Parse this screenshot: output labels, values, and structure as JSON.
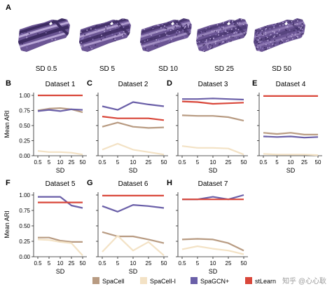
{
  "panel_a": {
    "letter": "A",
    "labels": [
      "SD 0.5",
      "SD 5",
      "SD 10",
      "SD 25",
      "SD 50"
    ]
  },
  "chart_data": [
    {
      "letter": "B",
      "type": "line",
      "title": "Dataset 1",
      "x": [
        "0.5",
        "5",
        "10",
        "25",
        "50"
      ],
      "xlabel": "SD",
      "ylabel": "Mean ARI",
      "ylim": [
        0,
        1.0
      ],
      "yticks": [
        "0.00",
        "0.25",
        "0.50",
        "0.75",
        "1.00"
      ],
      "series": [
        {
          "name": "SpaCell",
          "values": [
            0.75,
            0.78,
            0.79,
            0.77,
            0.72
          ]
        },
        {
          "name": "SpaCell-I",
          "values": [
            0.08,
            0.06,
            0.06,
            0.05,
            0.02
          ]
        },
        {
          "name": "SpaGCN+",
          "values": [
            0.74,
            0.76,
            0.74,
            0.77,
            0.76
          ]
        },
        {
          "name": "stLearn",
          "values": [
            1.0,
            1.0,
            1.0,
            1.0,
            1.0
          ]
        }
      ]
    },
    {
      "letter": "C",
      "type": "line",
      "title": "Dataset 2",
      "x": [
        "0.5",
        "5",
        "10",
        "25",
        "50"
      ],
      "xlabel": "SD",
      "ylabel": "",
      "ylim": [
        0,
        1.0
      ],
      "yticks": [
        "",
        "",
        "",
        "",
        ""
      ],
      "series": [
        {
          "name": "SpaCell",
          "values": [
            0.48,
            0.55,
            0.48,
            0.46,
            0.47
          ]
        },
        {
          "name": "SpaCell-I",
          "values": [
            0.1,
            0.2,
            0.1,
            0.06,
            0.02
          ]
        },
        {
          "name": "SpaGCN+",
          "values": [
            0.82,
            0.76,
            0.89,
            0.85,
            0.82
          ]
        },
        {
          "name": "stLearn",
          "values": [
            0.65,
            0.62,
            0.62,
            0.62,
            0.59
          ]
        }
      ]
    },
    {
      "letter": "D",
      "type": "line",
      "title": "Dataset 3",
      "x": [
        "0.5",
        "5",
        "10",
        "25",
        "50"
      ],
      "xlabel": "SD",
      "ylabel": "",
      "ylim": [
        0,
        1.0
      ],
      "yticks": [
        "",
        "",
        "",
        "",
        ""
      ],
      "series": [
        {
          "name": "SpaCell",
          "values": [
            0.67,
            0.66,
            0.66,
            0.64,
            0.58
          ]
        },
        {
          "name": "SpaCell-I",
          "values": [
            0.16,
            0.13,
            0.13,
            0.12,
            0.02
          ]
        },
        {
          "name": "SpaGCN+",
          "values": [
            0.94,
            0.94,
            0.95,
            0.94,
            0.93
          ]
        },
        {
          "name": "stLearn",
          "values": [
            0.9,
            0.89,
            0.86,
            0.87,
            0.88
          ]
        }
      ]
    },
    {
      "letter": "E",
      "type": "line",
      "title": "Dataset 4",
      "x": [
        "0.5",
        "5",
        "10",
        "25",
        "50"
      ],
      "xlabel": "SD",
      "ylabel": "",
      "ylim": [
        0,
        1.0
      ],
      "yticks": [
        "",
        "",
        "",
        "",
        ""
      ],
      "series": [
        {
          "name": "SpaCell",
          "values": [
            0.38,
            0.36,
            0.38,
            0.35,
            0.35
          ]
        },
        {
          "name": "SpaCell-I",
          "values": [
            0.03,
            0.02,
            0.02,
            0.02,
            0.01
          ]
        },
        {
          "name": "SpaGCN+",
          "values": [
            0.32,
            0.31,
            0.32,
            0.3,
            0.31
          ]
        },
        {
          "name": "stLearn",
          "values": [
            0.99,
            0.99,
            0.99,
            0.99,
            0.99
          ]
        }
      ]
    },
    {
      "letter": "F",
      "type": "line",
      "title": "Dataset 5",
      "x": [
        "0.5",
        "5",
        "10",
        "25",
        "50"
      ],
      "xlabel": "SD",
      "ylabel": "Mean ARI",
      "ylim": [
        0,
        1.0
      ],
      "yticks": [
        "0.00",
        "0.25",
        "0.50",
        "0.75",
        "1.00"
      ],
      "series": [
        {
          "name": "SpaCell",
          "values": [
            0.31,
            0.31,
            0.26,
            0.24,
            0.24
          ]
        },
        {
          "name": "SpaCell-I",
          "values": [
            0.28,
            0.27,
            0.24,
            0.22,
            0.02
          ]
        },
        {
          "name": "SpaGCN+",
          "values": [
            0.97,
            0.97,
            0.97,
            0.83,
            0.79
          ]
        },
        {
          "name": "stLearn",
          "values": [
            0.88,
            0.88,
            0.88,
            0.88,
            0.88
          ]
        }
      ]
    },
    {
      "letter": "G",
      "type": "line",
      "title": "Dataset 6",
      "x": [
        "0.5",
        "5",
        "10",
        "25",
        "50"
      ],
      "xlabel": "SD",
      "ylabel": "",
      "ylim": [
        0,
        1.0
      ],
      "yticks": [
        "",
        "",
        "",
        "",
        ""
      ],
      "series": [
        {
          "name": "SpaCell",
          "values": [
            0.4,
            0.33,
            0.33,
            0.28,
            0.22
          ]
        },
        {
          "name": "SpaCell-I",
          "values": [
            0.08,
            0.34,
            0.1,
            0.24,
            0.02
          ]
        },
        {
          "name": "SpaGCN+",
          "values": [
            0.82,
            0.73,
            0.84,
            0.82,
            0.79
          ]
        },
        {
          "name": "stLearn",
          "values": [
            0.99,
            0.99,
            0.99,
            0.99,
            0.99
          ]
        }
      ]
    },
    {
      "letter": "H",
      "type": "line",
      "title": "Dataset 7",
      "x": [
        "0.5",
        "5",
        "10",
        "25",
        "50"
      ],
      "xlabel": "SD",
      "ylabel": "",
      "ylim": [
        0,
        1.0
      ],
      "yticks": [
        "",
        "",
        "",
        "",
        ""
      ],
      "series": [
        {
          "name": "SpaCell",
          "values": [
            0.28,
            0.29,
            0.28,
            0.22,
            0.1
          ]
        },
        {
          "name": "SpaCell-I",
          "values": [
            0.12,
            0.17,
            0.13,
            0.1,
            0.04
          ]
        },
        {
          "name": "SpaGCN+",
          "values": [
            0.93,
            0.93,
            0.97,
            0.93,
            1.0
          ]
        },
        {
          "name": "stLearn",
          "values": [
            0.93,
            0.93,
            0.93,
            0.93,
            0.93
          ]
        }
      ]
    }
  ],
  "legend": {
    "placement": "bottom",
    "items": [
      {
        "label": "SpaCell",
        "color": "#b89b82"
      },
      {
        "label": "SpaCell-I",
        "color": "#f3e2c5"
      },
      {
        "label": "SpaGCN+",
        "color": "#6a5fa8"
      },
      {
        "label": "stLearn",
        "color": "#d9473a"
      }
    ]
  },
  "watermark": {
    "text": "知乎 @心心耿"
  },
  "colors": {
    "tissue_base": "#6b5594",
    "tissue_dark": "#3d2c62",
    "tissue_light": "#b8a6d6",
    "axis": "#222222"
  }
}
